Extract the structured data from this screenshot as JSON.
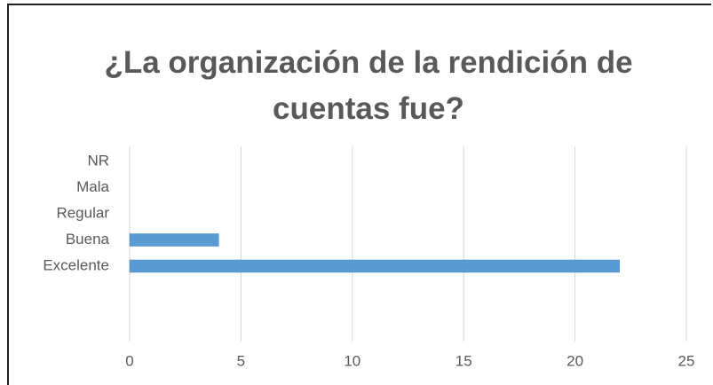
{
  "chart_data": {
    "type": "bar",
    "orientation": "horizontal",
    "title": "¿La organización de la rendición de cuentas fue?",
    "categories": [
      "NR",
      "Mala",
      "Regular",
      "Buena",
      "Excelente"
    ],
    "values": [
      0,
      0,
      0,
      4,
      22
    ],
    "color": "#5b9bd5",
    "xlim": [
      0,
      25
    ],
    "xticks": [
      0,
      5,
      10,
      15,
      20,
      25
    ],
    "grid": true
  }
}
